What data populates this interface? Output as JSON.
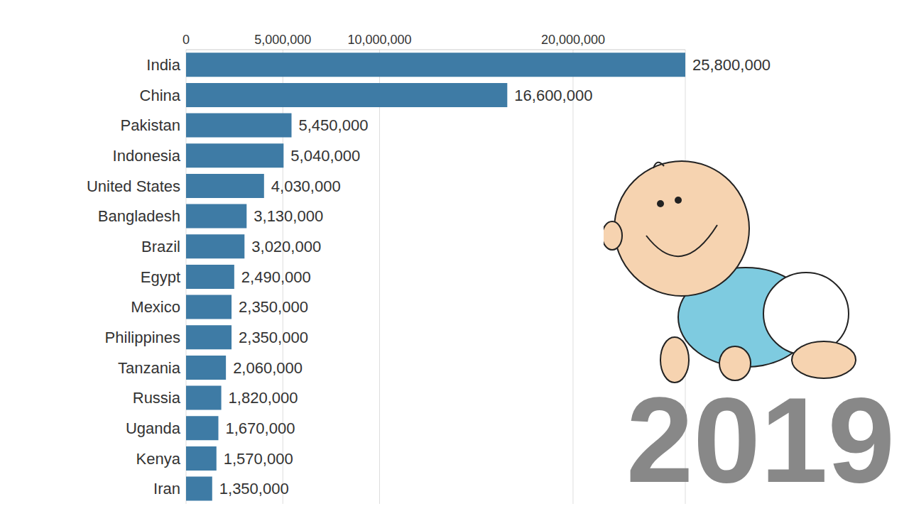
{
  "chart_data": {
    "type": "bar",
    "orientation": "horizontal",
    "categories": [
      "India",
      "China",
      "Pakistan",
      "Indonesia",
      "United States",
      "Bangladesh",
      "Brazil",
      "Egypt",
      "Mexico",
      "Philippines",
      "Tanzania",
      "Russia",
      "Uganda",
      "Kenya",
      "Iran"
    ],
    "values": [
      25800000,
      16600000,
      5450000,
      5040000,
      4030000,
      3130000,
      3020000,
      2490000,
      2350000,
      2350000,
      2060000,
      1820000,
      1670000,
      1570000,
      1350000
    ],
    "value_labels": [
      "25,800,000",
      "16,600,000",
      "5,450,000",
      "5,040,000",
      "4,030,000",
      "3,130,000",
      "3,020,000",
      "2,490,000",
      "2,350,000",
      "2,350,000",
      "2,060,000",
      "1,820,000",
      "1,670,000",
      "1,570,000",
      "1,350,000"
    ],
    "color": "#3e7ba5",
    "xlim": [
      0,
      25800000
    ],
    "xticks": [
      0,
      {
        "value": 5000000,
        "label": "5,000,000"
      },
      {
        "value": 10000000,
        "label": "10,000,000"
      },
      {
        "value": 20000000,
        "label": "20,000,000"
      }
    ],
    "grid": true,
    "data_labels": true,
    "annotations": [
      "2019"
    ]
  }
}
